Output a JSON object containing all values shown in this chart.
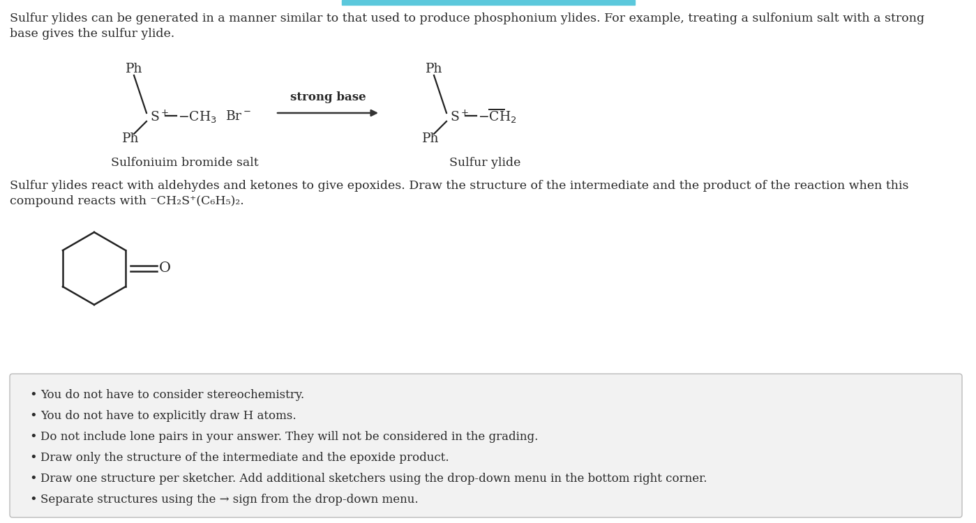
{
  "bg_color": "#ffffff",
  "text_color": "#2a2a2a",
  "top_bar_color": "#5bc8dc",
  "para1_line1": "Sulfur ylides can be generated in a manner similar to that used to produce phosphonium ylides. For example, treating a sulfonium salt with a strong",
  "para1_line2": "base gives the sulfur ylide.",
  "para2_line1": "Sulfur ylides react with aldehydes and ketones to give epoxides. Draw the structure of the intermediate and the product of the reaction when this",
  "para2_line2_parts": [
    "compound reacts with ",
    "⁻CH₂S⁺(C₆H₅)₂."
  ],
  "label_left": "Sulfoniuim bromide salt",
  "label_right": "Sulfur ylide",
  "arrow_label": "strong base",
  "bullet_points": [
    "You do not have to consider stereochemistry.",
    "You do not have to explicitly draw H atoms.",
    "Do not include lone pairs in your answer. They will not be considered in the grading.",
    "Draw only the structure of the intermediate and the epoxide product.",
    "Draw one structure per sketcher. Add additional sketchers using the drop-down menu in the bottom right corner.",
    "Separate structures using the → sign from the drop-down menu."
  ],
  "box_bg": "#f2f2f2",
  "box_border": "#bbbbbb",
  "figw": 13.99,
  "figh": 7.5,
  "dpi": 100
}
